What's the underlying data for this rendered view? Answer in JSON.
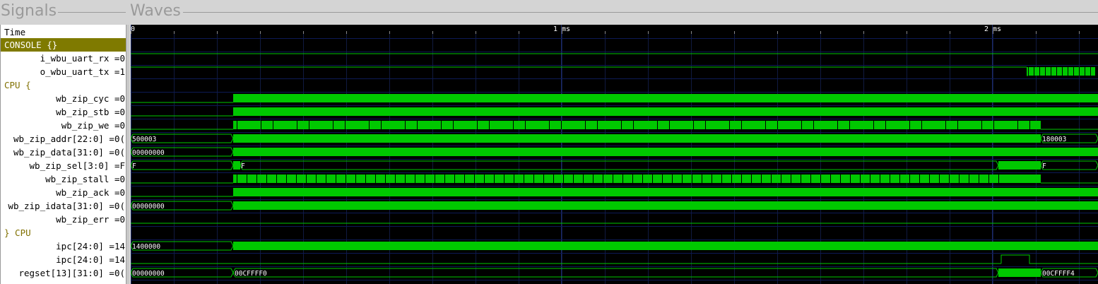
{
  "panels": {
    "signals_title": "Signals",
    "waves_title": "Waves"
  },
  "time_header": "Time",
  "timeline": {
    "labels": [
      "0",
      "1 ms",
      "2 ms"
    ],
    "label_positions_ms": [
      0,
      1,
      2
    ]
  },
  "signals": [
    {
      "label": "CONSOLE {}",
      "kind": "console"
    },
    {
      "label": "i_wbu_uart_rx =0",
      "kind": "signal"
    },
    {
      "label": "o_wbu_uart_tx =1",
      "kind": "signal"
    },
    {
      "label": "CPU {",
      "kind": "group"
    },
    {
      "label": "wb_zip_cyc =0",
      "kind": "signal"
    },
    {
      "label": "wb_zip_stb =0",
      "kind": "signal"
    },
    {
      "label": "wb_zip_we =0",
      "kind": "signal"
    },
    {
      "label": "wb_zip_addr[22:0] =0(",
      "kind": "signal"
    },
    {
      "label": "wb_zip_data[31:0] =0(",
      "kind": "signal"
    },
    {
      "label": "wb_zip_sel[3:0] =F",
      "kind": "signal"
    },
    {
      "label": "wb_zip_stall =0",
      "kind": "signal"
    },
    {
      "label": "wb_zip_ack =0",
      "kind": "signal"
    },
    {
      "label": "wb_zip_idata[31:0] =0(",
      "kind": "signal"
    },
    {
      "label": "wb_zip_err =0",
      "kind": "signal"
    },
    {
      "label": "} CPU",
      "kind": "group"
    },
    {
      "label": "ipc[24:0] =14",
      "kind": "signal"
    },
    {
      "label": "ipc[24:0] =14",
      "kind": "signal"
    },
    {
      "label": "regset[13][31:0] =0(",
      "kind": "signal"
    }
  ],
  "wave_values": {
    "wb_zip_addr": [
      "500003",
      "180003"
    ],
    "wb_zip_data": [
      "00000000"
    ],
    "wb_zip_sel": [
      "F",
      "F",
      "F"
    ],
    "wb_zip_idata": [
      "00000000"
    ],
    "ipc": [
      "1400000"
    ],
    "regset": [
      "00000000",
      "00CFFFF0",
      "00CFFFF4"
    ]
  },
  "colors": {
    "wave": "#00c800",
    "grid": "#1c2a6a",
    "console": "#7f7a00",
    "group": "#807000"
  }
}
